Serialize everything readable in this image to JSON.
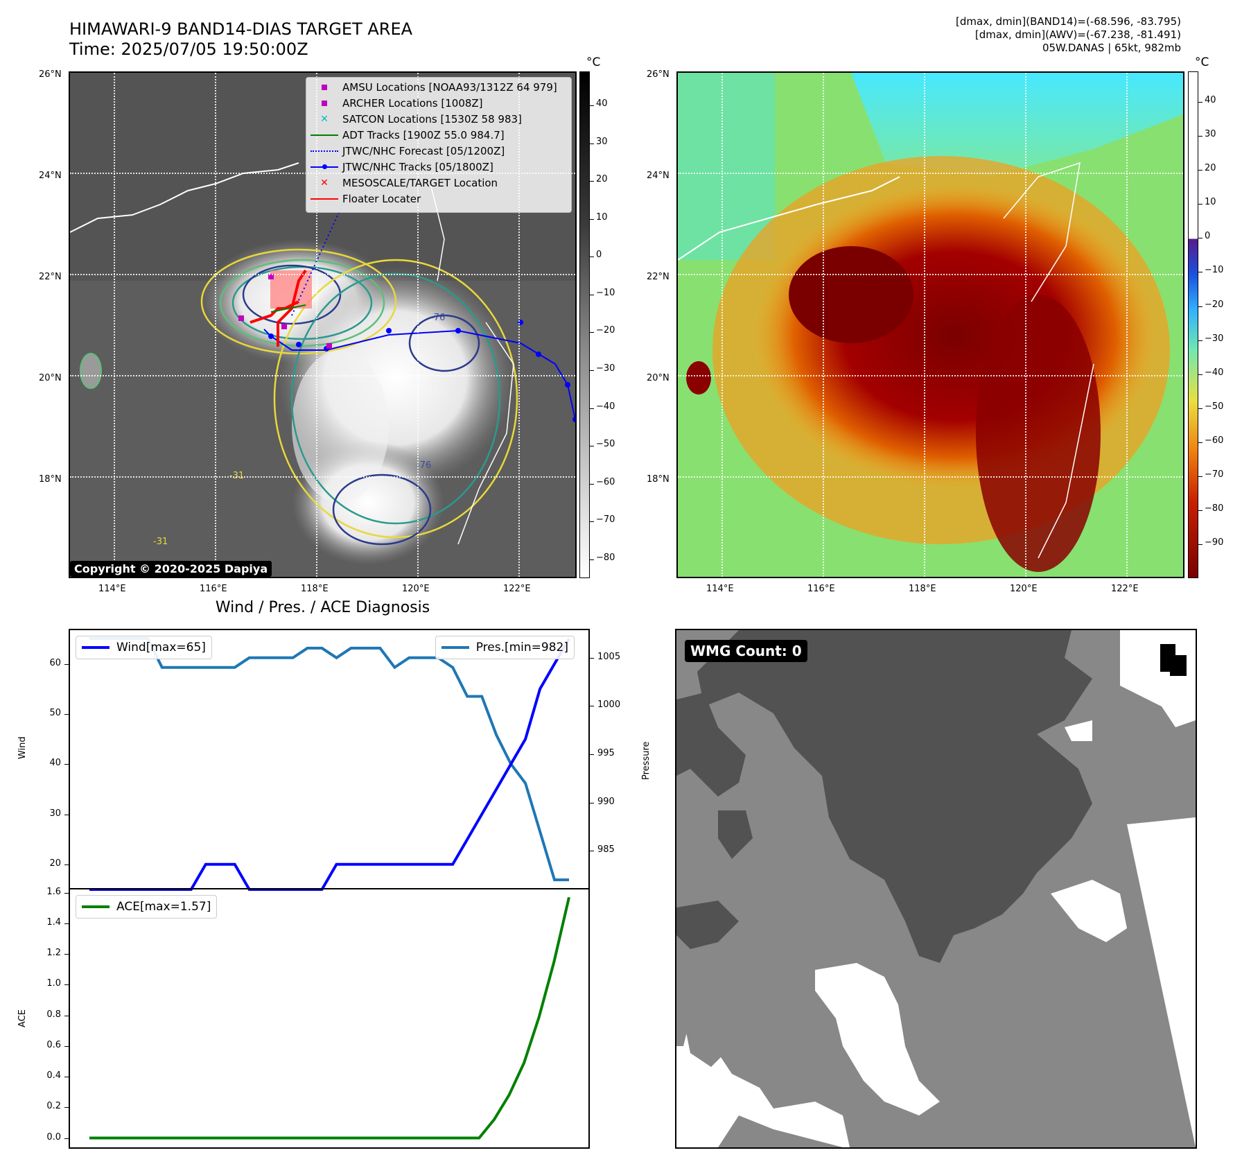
{
  "header": {
    "title_line1": "HIMAWARI-9 BAND14-DIAS TARGET AREA",
    "title_line2": "Time: 2025/07/05 19:50:00Z",
    "info_line1": "[dmax, dmin](BAND14)=(-68.596, -83.795)",
    "info_line2": "[dmax, dmin](AWV)=(-67.238, -81.491)",
    "info_line3": "05W.DANAS | 65kt, 982mb"
  },
  "map_left": {
    "lat_labels": [
      "26°N",
      "24°N",
      "22°N",
      "20°N",
      "18°N"
    ],
    "lon_labels": [
      "114°E",
      "116°E",
      "118°E",
      "120°E",
      "122°E"
    ],
    "copyright": "Copyright © 2020-2025 Dapiya",
    "contour_labels": [
      "-76",
      "-76",
      "-31",
      "-31"
    ],
    "legend": [
      {
        "label": "AMSU Locations [NOAA93/1312Z 64 979]",
        "color": "#bf00bf",
        "marker": "square"
      },
      {
        "label": "ARCHER Locations [1008Z]",
        "color": "#bf00bf",
        "marker": "square"
      },
      {
        "label": "SATCON Locations [1530Z 58 983]",
        "color": "#00bfbf",
        "marker": "x"
      },
      {
        "label": "ADT Tracks [1900Z 55.0 984.7]",
        "color": "#008000",
        "marker": "line"
      },
      {
        "label": "JTWC/NHC Forecast [05/1200Z]",
        "color": "#0000ff",
        "marker": "dotted"
      },
      {
        "label": "JTWC/NHC Tracks [05/1800Z]",
        "color": "#0000ff",
        "marker": "line-dot"
      },
      {
        "label": "MESOSCALE/TARGET Location",
        "color": "#ff0000",
        "marker": "x"
      },
      {
        "label": "Floater Locater",
        "color": "#ff0000",
        "marker": "line"
      }
    ]
  },
  "colorbar_left": {
    "unit": "°C",
    "ticks": [
      "40",
      "30",
      "20",
      "10",
      "0",
      "−10",
      "−20",
      "−30",
      "−40",
      "−50",
      "−60",
      "−70",
      "−80"
    ]
  },
  "map_right": {
    "lat_labels": [
      "26°N",
      "24°N",
      "22°N",
      "20°N",
      "18°N"
    ],
    "lon_labels": [
      "114°E",
      "116°E",
      "118°E",
      "120°E",
      "122°E"
    ]
  },
  "colorbar_right": {
    "unit": "°C",
    "ticks": [
      "40",
      "30",
      "20",
      "10",
      "0",
      "−10",
      "−20",
      "−30",
      "−40",
      "−50",
      "−60",
      "−70",
      "−80",
      "−90"
    ]
  },
  "wmg": {
    "count_label": "WMG Count: 0"
  },
  "chart_data": [
    {
      "type": "line",
      "title": "Wind / Pres. / ACE Diagnosis",
      "ylabel": "Wind",
      "y2label": "Pressure",
      "ylim": [
        15,
        67
      ],
      "y2lim": [
        981,
        1008
      ],
      "yticks": [
        20,
        30,
        40,
        50,
        60
      ],
      "y2ticks": [
        985,
        990,
        995,
        1000,
        1005
      ],
      "series": [
        {
          "name": "Wind[max=65]",
          "color": "#0000ff",
          "axis": "left",
          "values": [
            15,
            15,
            15,
            15,
            15,
            15,
            15,
            15,
            20,
            20,
            20,
            15,
            15,
            15,
            15,
            15,
            15,
            20,
            20,
            20,
            20,
            20,
            20,
            20,
            20,
            20,
            25,
            30,
            35,
            40,
            45,
            55,
            60,
            65
          ]
        },
        {
          "name": "Pres.[min=982]",
          "color": "#1f77b4",
          "axis": "right",
          "values": [
            1007,
            1007,
            1007,
            1007,
            1007,
            1004,
            1004,
            1004,
            1004,
            1004,
            1004,
            1005,
            1005,
            1005,
            1005,
            1006,
            1006,
            1005,
            1006,
            1006,
            1006,
            1004,
            1005,
            1005,
            1005,
            1004,
            1001,
            1001,
            997,
            994,
            992,
            987,
            982,
            982
          ]
        }
      ]
    },
    {
      "type": "line",
      "ylabel": "ACE",
      "ylim": [
        -0.07,
        1.63
      ],
      "yticks": [
        "0.0",
        "0.2",
        "0.4",
        "0.6",
        "0.8",
        "1.0",
        "1.2",
        "1.4",
        "1.6"
      ],
      "series": [
        {
          "name": "ACE[max=1.57]",
          "color": "#008000",
          "values": [
            0,
            0,
            0,
            0,
            0,
            0,
            0,
            0,
            0,
            0,
            0,
            0,
            0,
            0,
            0,
            0,
            0,
            0,
            0,
            0,
            0,
            0,
            0,
            0,
            0,
            0,
            0,
            0.12,
            0.28,
            0.49,
            0.79,
            1.15,
            1.57
          ]
        }
      ]
    }
  ]
}
